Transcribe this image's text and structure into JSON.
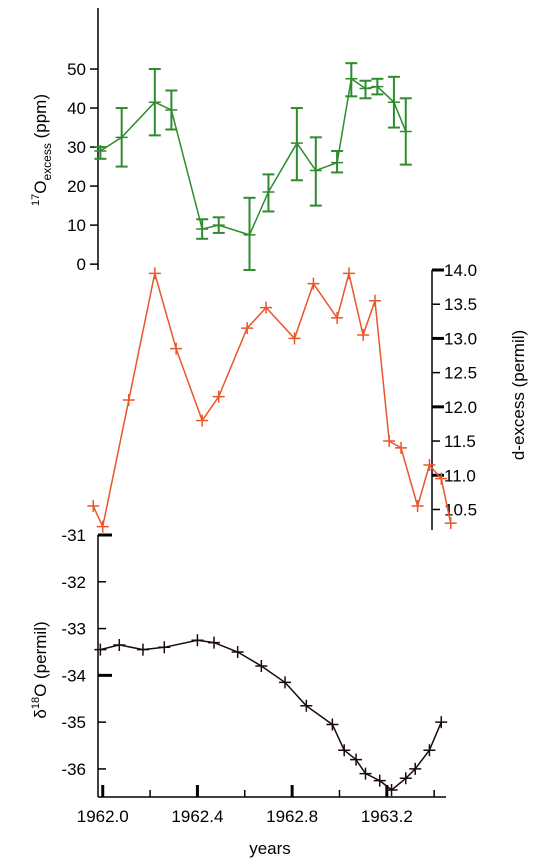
{
  "chart_data": [
    {
      "id": "o17",
      "type": "line",
      "ylabel_main": "O",
      "ylabel_sup": "17",
      "ylabel_sub": "excess",
      "ylabel_unit": " (ppm)",
      "yticks": [
        0,
        10,
        20,
        30,
        40,
        50
      ],
      "ylim": [
        -1.5,
        60
      ],
      "xlim": [
        1961.98,
        1963.45
      ],
      "axis_side": "left",
      "color": "#2e8b2e",
      "error_bars": true,
      "series": [
        {
          "x": [
            1961.99,
            1962.08,
            1962.22,
            1962.29,
            1962.42,
            1962.49,
            1962.62,
            1962.7,
            1962.82,
            1962.9,
            1962.99,
            1963.05,
            1963.11,
            1963.16,
            1963.23,
            1963.28
          ],
          "y": [
            29,
            32.5,
            41.5,
            39.5,
            9,
            10,
            7.5,
            18.5,
            31,
            24,
            26,
            47.5,
            45,
            45.5,
            41.5,
            34
          ],
          "err_low": [
            27,
            25,
            33,
            34.5,
            6.5,
            8,
            -1.5,
            13.5,
            21.5,
            15,
            23.5,
            43,
            42.5,
            43.5,
            35,
            25.5
          ],
          "err_high": [
            30,
            40,
            50,
            44.5,
            11.5,
            12,
            17,
            23,
            40,
            32.5,
            29,
            51.5,
            47,
            47.5,
            48,
            42.5
          ]
        }
      ]
    },
    {
      "id": "dexcess",
      "type": "line",
      "ylabel": "d-excess (permil)",
      "yticks": [
        "10.5",
        "11.0",
        "11.5",
        "12.0",
        "12.5",
        "13.0",
        "13.5",
        "14.0"
      ],
      "ylim": [
        10.2,
        14.0
      ],
      "xlim": [
        1961.98,
        1963.45
      ],
      "axis_side": "right",
      "color": "#e8562a",
      "series": [
        {
          "x": [
            1961.96,
            1962.0,
            1962.11,
            1962.22,
            1962.31,
            1962.42,
            1962.49,
            1962.61,
            1962.69,
            1962.81,
            1962.89,
            1962.99,
            1963.04,
            1963.1,
            1963.15,
            1963.21,
            1963.26,
            1963.33,
            1963.38,
            1963.43,
            1963.47
          ],
          "y": [
            10.55,
            10.25,
            12.1,
            13.95,
            12.85,
            11.8,
            12.15,
            13.15,
            13.45,
            13.0,
            13.8,
            13.3,
            13.95,
            13.05,
            13.55,
            11.5,
            11.4,
            10.55,
            11.15,
            10.95,
            10.3
          ]
        }
      ]
    },
    {
      "id": "d18o",
      "type": "line",
      "ylabel_pre": "δ",
      "ylabel_sup": "18",
      "ylabel_main": "O (permil)",
      "yticks": [
        -36,
        -35,
        -34,
        -33,
        -32,
        -31
      ],
      "ylim": [
        -36.6,
        -31
      ],
      "xlim": [
        1961.98,
        1963.45
      ],
      "xticks": [
        "1962.0",
        "1962.4",
        "1962.8",
        "1963.2"
      ],
      "xlabel": "years",
      "axis_side": "left",
      "color": "#1a0a0a",
      "series": [
        {
          "x": [
            1961.99,
            1962.07,
            1962.17,
            1962.26,
            1962.4,
            1962.47,
            1962.57,
            1962.67,
            1962.77,
            1962.86,
            1962.97,
            1963.02,
            1963.07,
            1963.11,
            1963.17,
            1963.22,
            1963.28,
            1963.32,
            1963.38,
            1963.43
          ],
          "y": [
            -33.45,
            -33.35,
            -33.45,
            -33.4,
            -33.25,
            -33.3,
            -33.5,
            -33.8,
            -34.15,
            -34.65,
            -35.05,
            -35.6,
            -35.8,
            -36.1,
            -36.25,
            -36.45,
            -36.2,
            -36.0,
            -35.6,
            -35.0
          ]
        }
      ]
    }
  ]
}
